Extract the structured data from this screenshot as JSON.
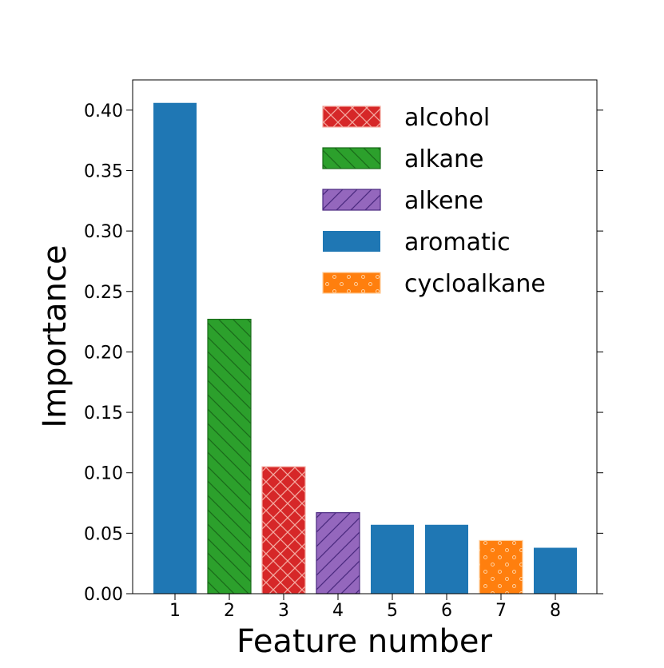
{
  "chart_data": {
    "type": "bar",
    "categories": [
      "1",
      "2",
      "3",
      "4",
      "5",
      "6",
      "7",
      "8"
    ],
    "values": [
      0.406,
      0.227,
      0.105,
      0.067,
      0.057,
      0.057,
      0.044,
      0.038
    ],
    "bar_groups": [
      "aromatic",
      "alkane",
      "alcohol",
      "alkene",
      "aromatic",
      "aromatic",
      "cycloalkane",
      "aromatic"
    ],
    "title": "",
    "xlabel": "Feature number",
    "ylabel": "Importance",
    "ylim": [
      0,
      0.425
    ],
    "yticks": [
      "0.00",
      "0.05",
      "0.10",
      "0.15",
      "0.20",
      "0.25",
      "0.30",
      "0.35",
      "0.40"
    ],
    "grid": false,
    "legend_position": "top-right",
    "legend": [
      {
        "name": "alcohol",
        "color": "#d62728",
        "hatch_color": "#f4a9a0",
        "pattern": "crosshatch"
      },
      {
        "name": "alkane",
        "color": "#2ca02c",
        "hatch_color": "#1a6b1a",
        "pattern": "backslash"
      },
      {
        "name": "alkene",
        "color": "#9467bd",
        "hatch_color": "#4b2a80",
        "pattern": "slash"
      },
      {
        "name": "aromatic",
        "color": "#1f77b4",
        "hatch_color": "#1f77b4",
        "pattern": "solid"
      },
      {
        "name": "cycloalkane",
        "color": "#ff7f0e",
        "hatch_color": "#ffd0a0",
        "pattern": "dots"
      }
    ]
  }
}
